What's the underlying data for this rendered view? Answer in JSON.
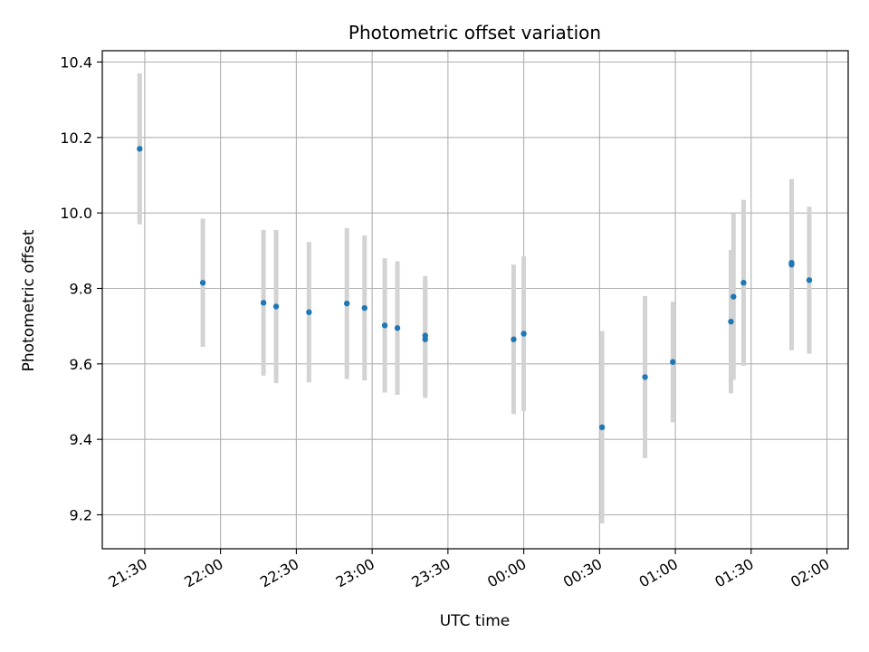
{
  "chart_data": {
    "type": "scatter",
    "title": "Photometric offset variation",
    "xlabel": "UTC time",
    "ylabel": "Photometric offset",
    "x_ticks": [
      "21:30",
      "22:00",
      "22:30",
      "23:00",
      "23:30",
      "00:00",
      "00:30",
      "01:00",
      "01:30",
      "02:00"
    ],
    "x_tick_minutes": [
      0,
      30,
      60,
      90,
      120,
      150,
      180,
      210,
      240,
      270
    ],
    "xlim_minutes": [
      -16.8,
      278.4
    ],
    "y_ticks": [
      9.2,
      9.4,
      9.6,
      9.8,
      10.0,
      10.2,
      10.4
    ],
    "ylim": [
      9.11,
      10.43
    ],
    "grid": true,
    "colors": {
      "points": "#1f77b4",
      "errorbars": "#d3d3d3",
      "grid": "#b0b0b0"
    },
    "points": [
      {
        "time": "21:28",
        "y": 10.17,
        "err": 0.2
      },
      {
        "time": "21:53",
        "y": 9.815,
        "err": 0.17
      },
      {
        "time": "22:17",
        "y": 9.762,
        "err": 0.193
      },
      {
        "time": "22:22",
        "y": 9.752,
        "err": 0.203
      },
      {
        "time": "22:35",
        "y": 9.737,
        "err": 0.186
      },
      {
        "time": "22:50",
        "y": 9.76,
        "err": 0.2
      },
      {
        "time": "22:57",
        "y": 9.748,
        "err": 0.192
      },
      {
        "time": "23:05",
        "y": 9.702,
        "err": 0.178
      },
      {
        "time": "23:10",
        "y": 9.695,
        "err": 0.177
      },
      {
        "time": "23:21",
        "y": 9.675,
        "err": 0.158
      },
      {
        "time": "23:21",
        "y": 9.665,
        "err": 0.155
      },
      {
        "time": "23:56",
        "y": 9.665,
        "err": 0.198
      },
      {
        "time": "00:00",
        "y": 9.68,
        "err": 0.205
      },
      {
        "time": "00:31",
        "y": 9.432,
        "err": 0.255
      },
      {
        "time": "00:48",
        "y": 9.565,
        "err": 0.215
      },
      {
        "time": "00:59",
        "y": 9.605,
        "err": 0.16
      },
      {
        "time": "01:22",
        "y": 9.712,
        "err": 0.19
      },
      {
        "time": "01:23",
        "y": 9.778,
        "err": 0.22
      },
      {
        "time": "01:27",
        "y": 9.815,
        "err": 0.22
      },
      {
        "time": "01:46",
        "y": 9.863,
        "err": 0.227
      },
      {
        "time": "01:46",
        "y": 9.868,
        "err": 0.22
      },
      {
        "time": "01:53",
        "y": 9.822,
        "err": 0.195
      }
    ]
  }
}
